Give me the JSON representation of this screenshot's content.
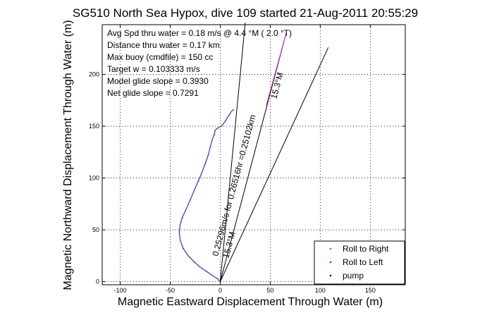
{
  "chart_data": {
    "type": "line",
    "title": "SG510 North Sea Hypox, dive 109 started 21-Aug-2011 20:55:29",
    "xlabel": "Magnetic Eastward Displacement Through Water (m)",
    "ylabel": "Magnetic Northward Displacement Through Water (m)",
    "xlim": [
      -118,
      185
    ],
    "ylim": [
      -3,
      248
    ],
    "xticks": [
      -100,
      -50,
      0,
      50,
      100,
      150
    ],
    "yticks": [
      0,
      50,
      100,
      150,
      200
    ],
    "grid": true,
    "legend_position": "bottom-right",
    "stats": [
      "Avg Spd thru water =  0.18 m/s @   4.4    °M (  2.0 °T)",
      "Distance thru water =  0.17 km",
      "Max buoy (cmdfile) = 150 cc",
      "Target w = 0.103333 m/s",
      "Model glide slope = 0.3930",
      "Net glide slope = 0.7291"
    ],
    "annotations": [
      "0.25296m/s for 0.26516hr =0.25102km",
      "15.3°M",
      "15.3°M"
    ],
    "series": [
      {
        "name": "Roll to Right",
        "color": "#00cc00",
        "x": [
          0,
          -3,
          -8,
          -14,
          -20,
          -26,
          -32,
          -37,
          -40,
          -41,
          -40,
          -38,
          -34,
          -30,
          -26,
          -22,
          -18,
          -15,
          -12,
          -10,
          -8,
          -6,
          -5,
          -3,
          -1,
          1,
          3,
          5,
          7,
          9,
          11,
          13
        ],
        "y": [
          0,
          3,
          6,
          10,
          14,
          19,
          25,
          32,
          40,
          48,
          55,
          62,
          70,
          79,
          88,
          97,
          106,
          114,
          122,
          130,
          137,
          142,
          146,
          148,
          149,
          150,
          152,
          155,
          158,
          161,
          164,
          166
        ]
      },
      {
        "name": "Roll to Left",
        "color": "#ee0000",
        "x": [
          0,
          -3,
          -8,
          -14,
          -20,
          -26,
          -32,
          -37,
          -40,
          -41,
          -40,
          -38,
          -34,
          -30,
          -26,
          -22,
          -18,
          -15,
          -12,
          -10,
          -8,
          -6,
          -5,
          -3,
          -1,
          1,
          3,
          5,
          7,
          9,
          11,
          13
        ],
        "y": [
          0,
          3,
          6,
          10,
          14,
          19,
          25,
          32,
          40,
          48,
          55,
          62,
          70,
          79,
          88,
          97,
          106,
          114,
          122,
          130,
          137,
          142,
          146,
          148,
          149,
          150,
          152,
          155,
          158,
          161,
          164,
          166
        ]
      },
      {
        "name": "pump",
        "color": "#000000",
        "x": [],
        "y": []
      }
    ],
    "track_color": "#3333cc",
    "reference_lines": [
      {
        "x": [
          0,
          66
        ],
        "y": [
          0,
          240
        ],
        "color": "#000000"
      },
      {
        "x": [
          0,
          25
        ],
        "y": [
          0,
          250
        ],
        "color": "#000000"
      },
      {
        "x": [
          0,
          108
        ],
        "y": [
          0,
          226
        ],
        "color": "#000000"
      }
    ]
  }
}
